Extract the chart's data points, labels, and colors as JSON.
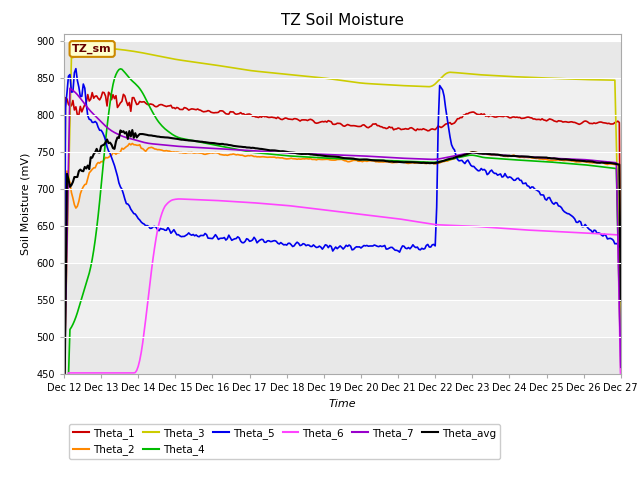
{
  "title": "TZ Soil Moisture",
  "xlabel": "Time",
  "ylabel": "Soil Moisture (mV)",
  "ylim": [
    450,
    910
  ],
  "xlim": [
    0,
    375
  ],
  "yticks": [
    450,
    500,
    550,
    600,
    650,
    700,
    750,
    800,
    850,
    900
  ],
  "xtick_labels": [
    "Dec 12",
    "Dec 13",
    "Dec 14",
    "Dec 15",
    "Dec 16",
    "Dec 17",
    "Dec 18",
    "Dec 19",
    "Dec 20",
    "Dec 21",
    "Dec 22",
    "Dec 23",
    "Dec 24",
    "Dec 25",
    "Dec 26",
    "Dec 27"
  ],
  "xtick_positions": [
    0,
    25,
    50,
    75,
    100,
    125,
    150,
    175,
    200,
    225,
    250,
    275,
    300,
    325,
    350,
    375
  ],
  "legend_label": "TZ_sm",
  "bg_bands": [
    "#e8e8e8",
    "#f0f0f0"
  ],
  "series": [
    {
      "name": "Theta_1",
      "color": "#cc0000",
      "lw": 1.2
    },
    {
      "name": "Theta_2",
      "color": "#ff8800",
      "lw": 1.2
    },
    {
      "name": "Theta_3",
      "color": "#cccc00",
      "lw": 1.2
    },
    {
      "name": "Theta_4",
      "color": "#00bb00",
      "lw": 1.2
    },
    {
      "name": "Theta_5",
      "color": "#0000ee",
      "lw": 1.2
    },
    {
      "name": "Theta_6",
      "color": "#ff44ff",
      "lw": 1.2
    },
    {
      "name": "Theta_7",
      "color": "#9900cc",
      "lw": 1.2
    },
    {
      "name": "Theta_avg",
      "color": "#000000",
      "lw": 1.5
    }
  ],
  "legend_row1": [
    "Theta_1",
    "Theta_2",
    "Theta_3",
    "Theta_4",
    "Theta_5",
    "Theta_6"
  ],
  "legend_row2": [
    "Theta_7",
    "Theta_avg"
  ]
}
